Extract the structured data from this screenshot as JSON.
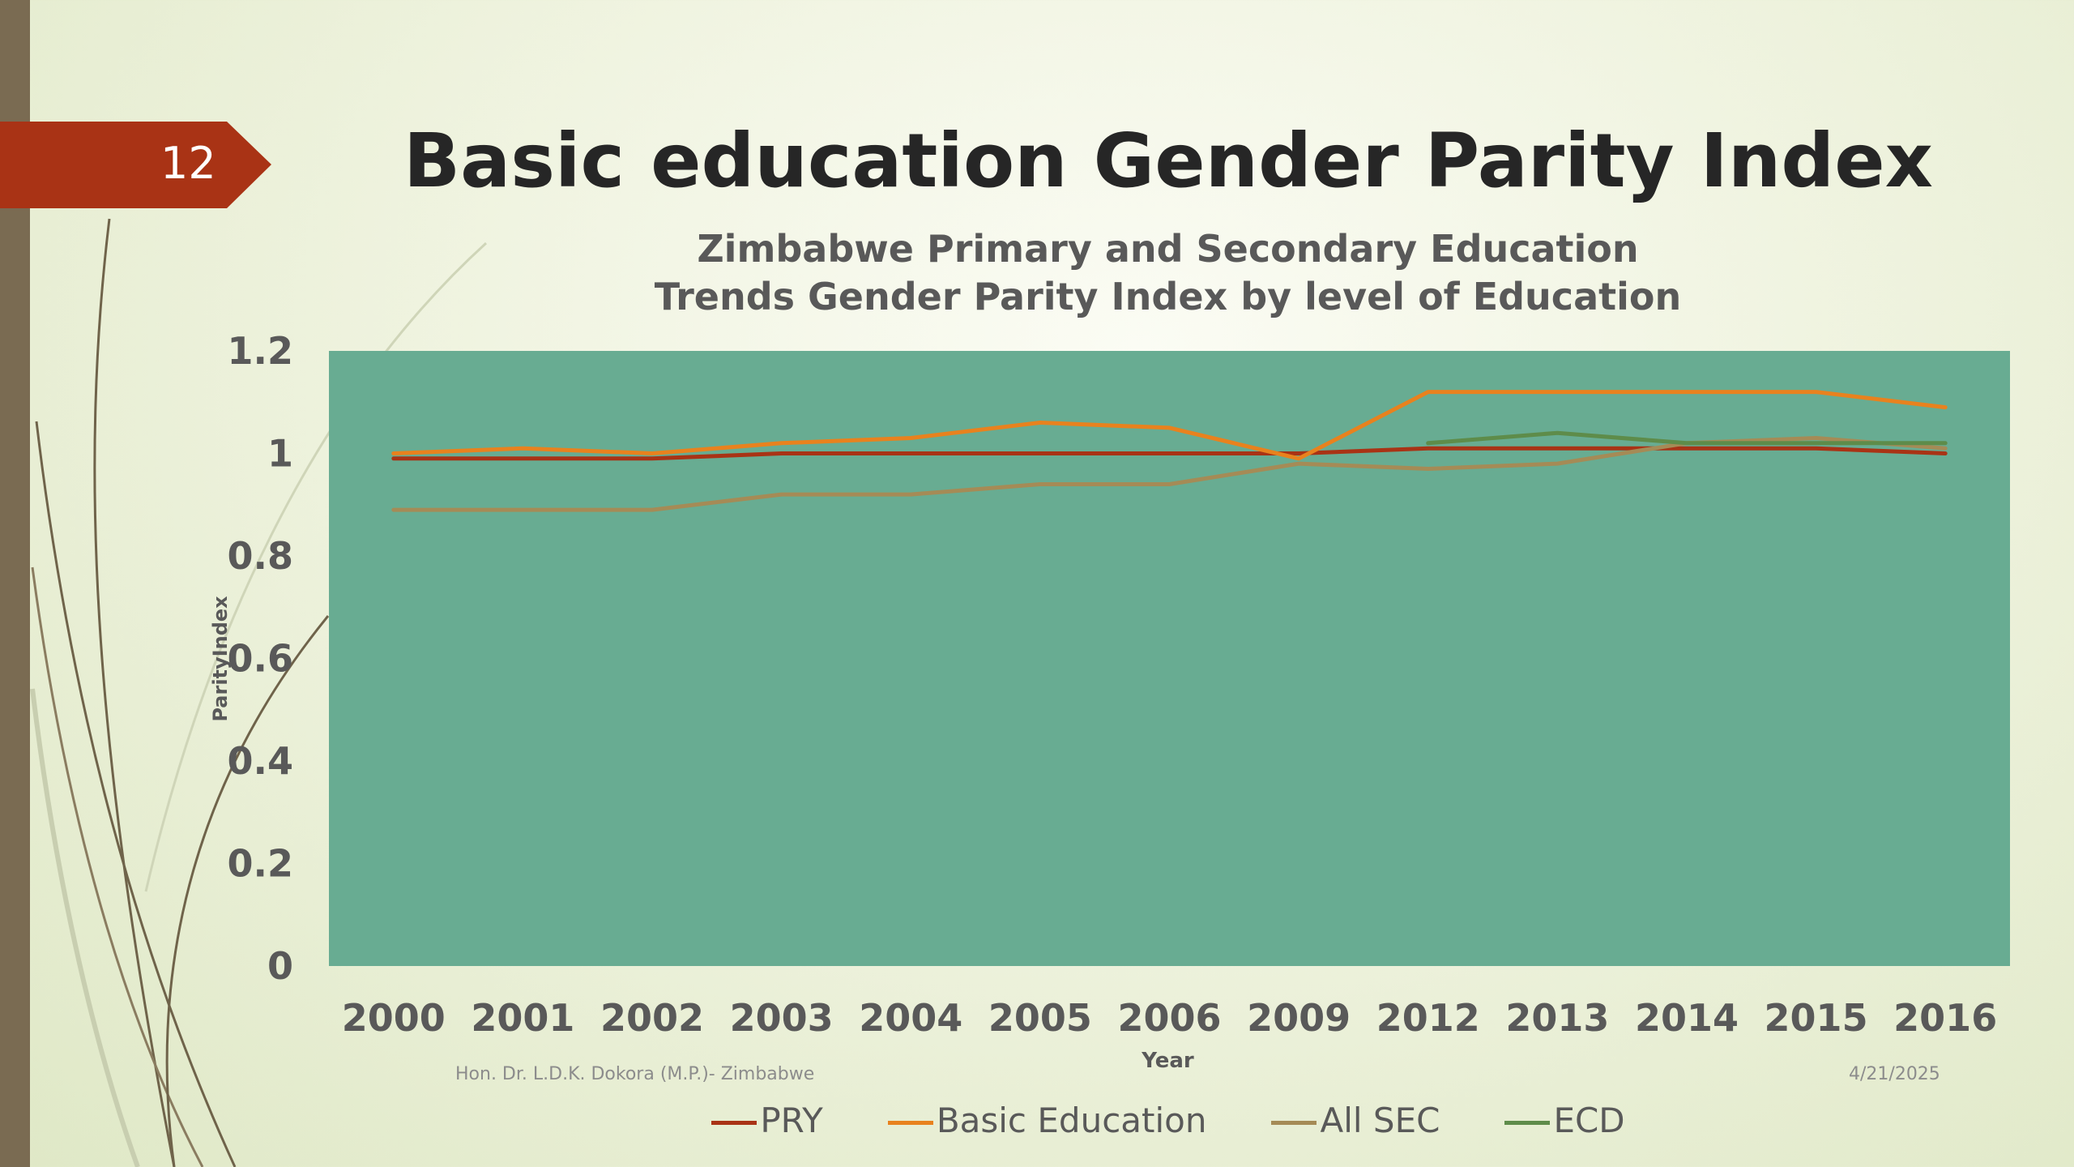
{
  "slide": {
    "number": "12",
    "title": "Basic education Gender Parity Index",
    "footer_left": "Hon. Dr. L.D.K. Dokora (M.P.)- Zimbabwe",
    "footer_right": "4/21/2025"
  },
  "colors": {
    "plot_background": "#68ac92",
    "slide_number_badge": "#a93315",
    "left_bar": "#7a6b52"
  },
  "chart_data": {
    "type": "line",
    "title": "Zimbabwe Primary and Secondary Education Trends Gender Parity Index by level of Education",
    "title_lines": [
      "Zimbabwe Primary and Secondary Education",
      "Trends Gender Parity Index by level of Education"
    ],
    "xlabel": "Year",
    "ylabel": "ParityIndex",
    "categories": [
      "2000",
      "2001",
      "2002",
      "2003",
      "2004",
      "2005",
      "2006",
      "2009",
      "2012",
      "2013",
      "2014",
      "2015",
      "2016"
    ],
    "ylim": [
      0,
      1.2
    ],
    "yticks": [
      "0",
      "0.2",
      "0.4",
      "0.6",
      "0.8",
      "1",
      "1.2"
    ],
    "grid": false,
    "legend_position": "bottom",
    "series": [
      {
        "name": "PRY",
        "color": "#a93315",
        "values": [
          0.99,
          0.99,
          0.99,
          1.0,
          1.0,
          1.0,
          1.0,
          1.0,
          1.01,
          1.01,
          1.01,
          1.01,
          1.0
        ]
      },
      {
        "name": "Basic Education",
        "color": "#e8821e",
        "values": [
          1.0,
          1.01,
          1.0,
          1.02,
          1.03,
          1.06,
          1.05,
          0.99,
          1.12,
          1.12,
          1.12,
          1.12,
          1.09
        ]
      },
      {
        "name": "All SEC",
        "color": "#a58b56",
        "values": [
          0.89,
          0.89,
          0.89,
          0.92,
          0.92,
          0.94,
          0.94,
          0.98,
          0.97,
          0.98,
          1.02,
          1.03,
          1.01
        ]
      },
      {
        "name": "ECD",
        "color": "#5e8c4a",
        "values": [
          null,
          null,
          null,
          null,
          null,
          null,
          null,
          null,
          1.02,
          1.04,
          1.02,
          1.02,
          1.02
        ]
      }
    ]
  }
}
